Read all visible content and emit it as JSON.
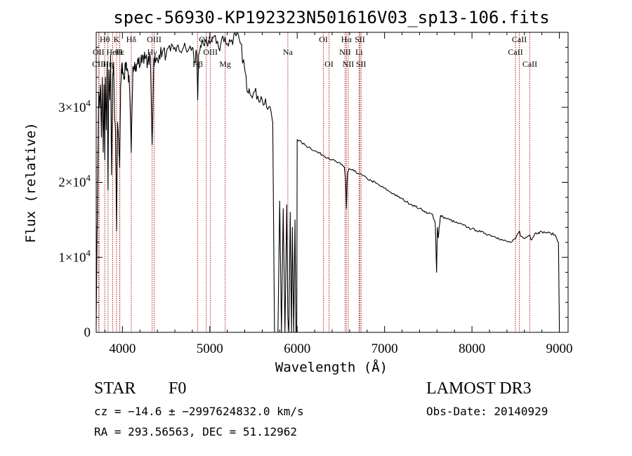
{
  "chart_data": {
    "type": "line",
    "title": "spec-56930-KP192323N501616V03_sp13-106.fits",
    "xlabel": "Wavelength (Å)",
    "ylabel": "Flux (relative)",
    "xlim": [
      3700,
      9100
    ],
    "ylim": [
      0,
      40000
    ],
    "xticks": [
      {
        "value": 4000,
        "label": "4000"
      },
      {
        "value": 5000,
        "label": "5000"
      },
      {
        "value": 6000,
        "label": "6000"
      },
      {
        "value": 7000,
        "label": "7000"
      },
      {
        "value": 8000,
        "label": "8000"
      },
      {
        "value": 9000,
        "label": "9000"
      }
    ],
    "yticks": [
      {
        "value": 0,
        "mantissa": "0",
        "exponent": ""
      },
      {
        "value": 10000,
        "mantissa": "1×10",
        "exponent": "4"
      },
      {
        "value": 20000,
        "mantissa": "2×10",
        "exponent": "4"
      },
      {
        "value": 30000,
        "mantissa": "3×10",
        "exponent": "4"
      }
    ],
    "line_color": "#000000",
    "marker_color": "#b22222",
    "spectrum": {
      "name": "Flux",
      "x": [
        3700,
        3710,
        3720,
        3730,
        3740,
        3750,
        3760,
        3770,
        3780,
        3790,
        3798,
        3805,
        3815,
        3825,
        3835,
        3845,
        3855,
        3865,
        3875,
        3889,
        3900,
        3910,
        3920,
        3933,
        3945,
        3955,
        3968,
        3980,
        3990,
        4000,
        4020,
        4040,
        4060,
        4080,
        4101,
        4120,
        4140,
        4160,
        4180,
        4200,
        4230,
        4260,
        4290,
        4320,
        4340,
        4360,
        4380,
        4420,
        4460,
        4500,
        4550,
        4600,
        4650,
        4700,
        4750,
        4800,
        4830,
        4850,
        4861,
        4872,
        4900,
        4950,
        5000,
        5050,
        5100,
        5150,
        5200,
        5250,
        5300,
        5350,
        5400,
        5420,
        5450,
        5500,
        5550,
        5600,
        5650,
        5700,
        5720,
        5740,
        5760,
        5780,
        5800,
        5820,
        5840,
        5860,
        5880,
        5893,
        5905,
        5920,
        5935,
        5945,
        5960,
        5975,
        5985,
        5995,
        6000,
        6050,
        6100,
        6150,
        6200,
        6250,
        6300,
        6350,
        6400,
        6450,
        6500,
        6540,
        6555,
        6563,
        6575,
        6600,
        6650,
        6700,
        6750,
        6800,
        6850,
        6900,
        6950,
        7000,
        7050,
        7100,
        7150,
        7200,
        7250,
        7300,
        7350,
        7400,
        7450,
        7500,
        7550,
        7580,
        7595,
        7605,
        7615,
        7625,
        7640,
        7650,
        7700,
        7750,
        7800,
        7850,
        7900,
        7950,
        8000,
        8050,
        8100,
        8150,
        8200,
        8250,
        8300,
        8350,
        8400,
        8450,
        8500,
        8542,
        8560,
        8600,
        8662,
        8680,
        8720,
        8760,
        8800,
        8850,
        8900,
        8950,
        8990,
        9000
      ],
      "y": [
        1000,
        13000,
        24000,
        32000,
        30000,
        33000,
        26000,
        34000,
        24000,
        33000,
        23000,
        34000,
        27000,
        36000,
        19000,
        35000,
        31000,
        37000,
        21000,
        34000,
        36000,
        29000,
        27000,
        13500,
        28000,
        26000,
        22000,
        33000,
        35000,
        35500,
        34000,
        36000,
        35000,
        33000,
        24000,
        35500,
        36000,
        35000,
        36500,
        35500,
        37000,
        36500,
        36000,
        36500,
        25000,
        36500,
        36000,
        37000,
        37500,
        37000,
        37500,
        38000,
        37500,
        38000,
        37500,
        38000,
        36000,
        37000,
        31000,
        37000,
        38000,
        39000,
        38500,
        39500,
        38000,
        39500,
        38500,
        39000,
        39500,
        38500,
        35000,
        33000,
        32500,
        32000,
        31500,
        31000,
        30000,
        29500,
        28000,
        0,
        0,
        0,
        17500,
        0,
        16500,
        0,
        17000,
        2000,
        0,
        16000,
        0,
        14000,
        0,
        15000,
        0,
        0,
        25700,
        25300,
        24900,
        24600,
        24200,
        23900,
        23600,
        23300,
        23000,
        22700,
        22400,
        22000,
        20000,
        16500,
        21200,
        21800,
        21500,
        21200,
        20900,
        20500,
        20200,
        19900,
        19500,
        19200,
        18800,
        18500,
        18100,
        17800,
        17400,
        17100,
        16800,
        16500,
        16200,
        15900,
        15700,
        14500,
        8000,
        14000,
        12600,
        14000,
        15500,
        15500,
        15200,
        15000,
        14700,
        14500,
        14300,
        14000,
        13800,
        13600,
        13400,
        13200,
        13000,
        12800,
        12600,
        12300,
        12100,
        12000,
        12500,
        13500,
        12800,
        12500,
        13000,
        12300,
        13200,
        13300,
        13400,
        13300,
        13200,
        13000,
        12000,
        500
      ]
    },
    "lines": [
      {
        "label": "Hθ",
        "wavelength": 3798,
        "row": 0
      },
      {
        "label": "OII",
        "wavelength": 3727,
        "row": 1
      },
      {
        "label": "CIII",
        "wavelength": 3733,
        "row": 2
      },
      {
        "label": "Hη",
        "wavelength": 3835,
        "row": 2
      },
      {
        "label": "K",
        "wavelength": 3933,
        "row": 0
      },
      {
        "label": "HeI",
        "wavelength": 3889,
        "row": 1
      },
      {
        "label": "H",
        "wavelength": 3968,
        "row": 1
      },
      {
        "label": "Hε",
        "wavelength": 3970,
        "row": 1
      },
      {
        "label": "Hδ",
        "wavelength": 4101,
        "row": 0
      },
      {
        "label": "OIII",
        "wavelength": 4363,
        "row": 0
      },
      {
        "label": "Hγ",
        "wavelength": 4340,
        "row": 1
      },
      {
        "label": "Hβ",
        "wavelength": 4861,
        "row": 2
      },
      {
        "label": "OIII",
        "wavelength": 4959,
        "row": 0
      },
      {
        "label": "OIII",
        "wavelength": 5007,
        "row": 1
      },
      {
        "label": "Mg",
        "wavelength": 5175,
        "row": 2
      },
      {
        "label": "Na",
        "wavelength": 5893,
        "row": 1
      },
      {
        "label": "OI",
        "wavelength": 6300,
        "row": 0
      },
      {
        "label": "OI",
        "wavelength": 6364,
        "row": 2
      },
      {
        "label": "Hα",
        "wavelength": 6563,
        "row": 0
      },
      {
        "label": "NII",
        "wavelength": 6548,
        "row": 1
      },
      {
        "label": "NII",
        "wavelength": 6584,
        "row": 2
      },
      {
        "label": "SII",
        "wavelength": 6717,
        "row": 0
      },
      {
        "label": "Li",
        "wavelength": 6708,
        "row": 1
      },
      {
        "label": "SII",
        "wavelength": 6731,
        "row": 2
      },
      {
        "label": "CaII",
        "wavelength": 8542,
        "row": 0
      },
      {
        "label": "CaII",
        "wavelength": 8498,
        "row": 1
      },
      {
        "label": "CaII",
        "wavelength": 8662,
        "row": 2
      }
    ]
  },
  "info": {
    "object_class": "STAR",
    "subclass": "F0",
    "survey": "LAMOST DR3",
    "redshift_text": "cz = −14.6 ± −2997624832.0 km/s",
    "obs_date_text": "Obs-Date: 20140929",
    "coords_text": "RA = 293.56563, DEC =  51.12962"
  }
}
